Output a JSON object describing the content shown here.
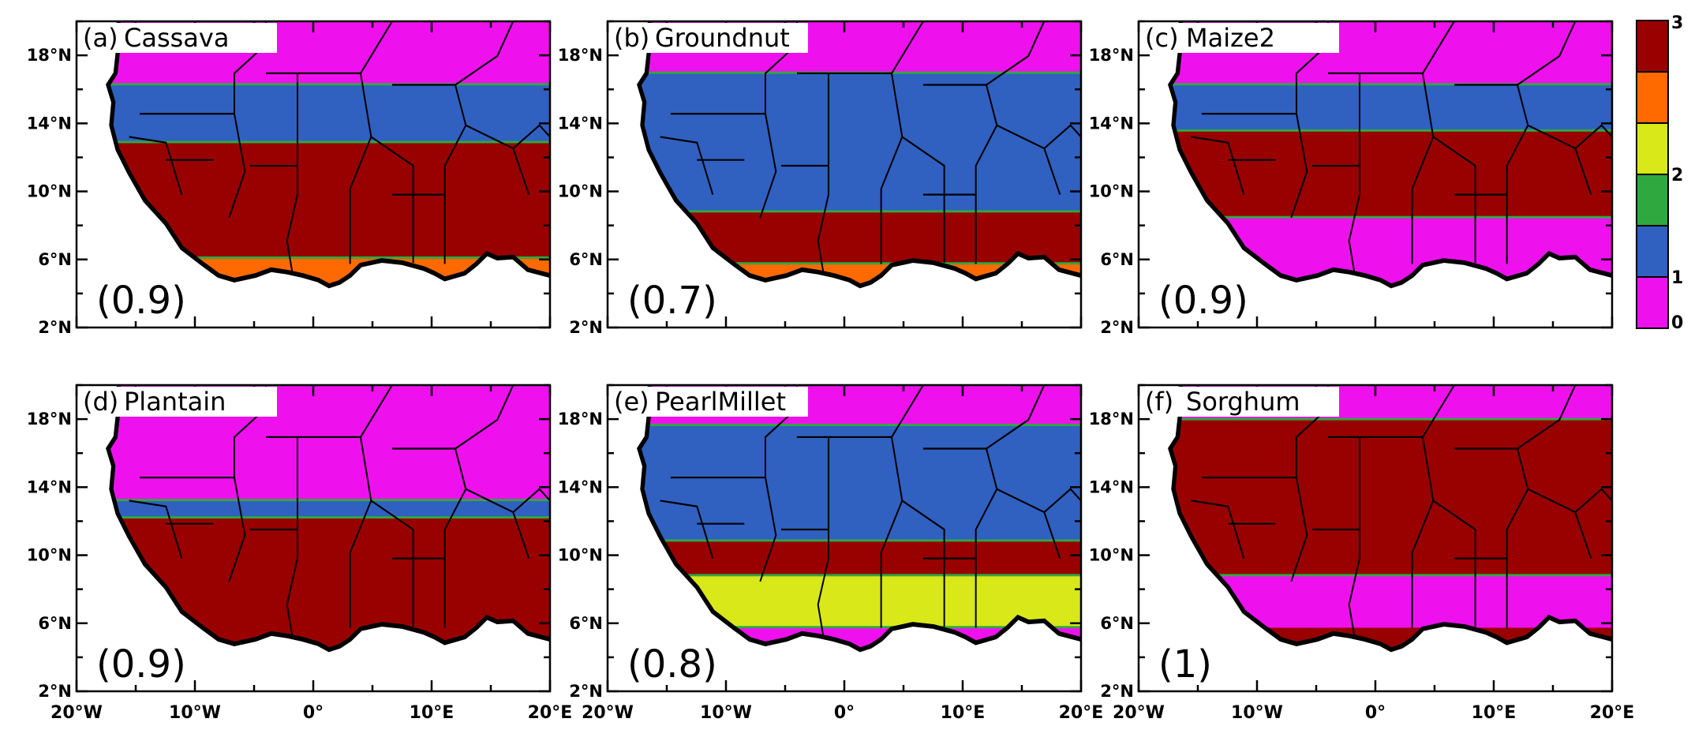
{
  "panels": [
    {
      "label": "(a)",
      "name": "Cassava",
      "score": "(0.9)"
    },
    {
      "label": "(b)",
      "name": "Groundnut",
      "score": "(0.7)"
    },
    {
      "label": "(c)",
      "name": "Maize2",
      "score": "(0.9)"
    },
    {
      "label": "(d)",
      "name": "Plantain",
      "score": "(0.9)"
    },
    {
      "label": "(e)",
      "name": "PearlMillet",
      "score": "(0.8)"
    },
    {
      "label": "(f)",
      "name": "Sorghum",
      "score": "(1)"
    }
  ],
  "lat_ticks": [
    "2°N",
    "6°N",
    "10°N",
    "14°N",
    "18°N"
  ],
  "lon_ticks": [
    "20°W",
    "10°W",
    "0°",
    "10°E",
    "20°E"
  ],
  "colorbar": {
    "ticks": [
      "0",
      "1",
      "2",
      "3"
    ],
    "colors": [
      "#ee11ee",
      "#3060c0",
      "#30a840",
      "#d8e818",
      "#ff6a00",
      "#990000"
    ]
  },
  "map_colors": {
    "ocean": "#ffffff",
    "sahara": "#ee11ee",
    "coast_outline": "#000000"
  }
}
